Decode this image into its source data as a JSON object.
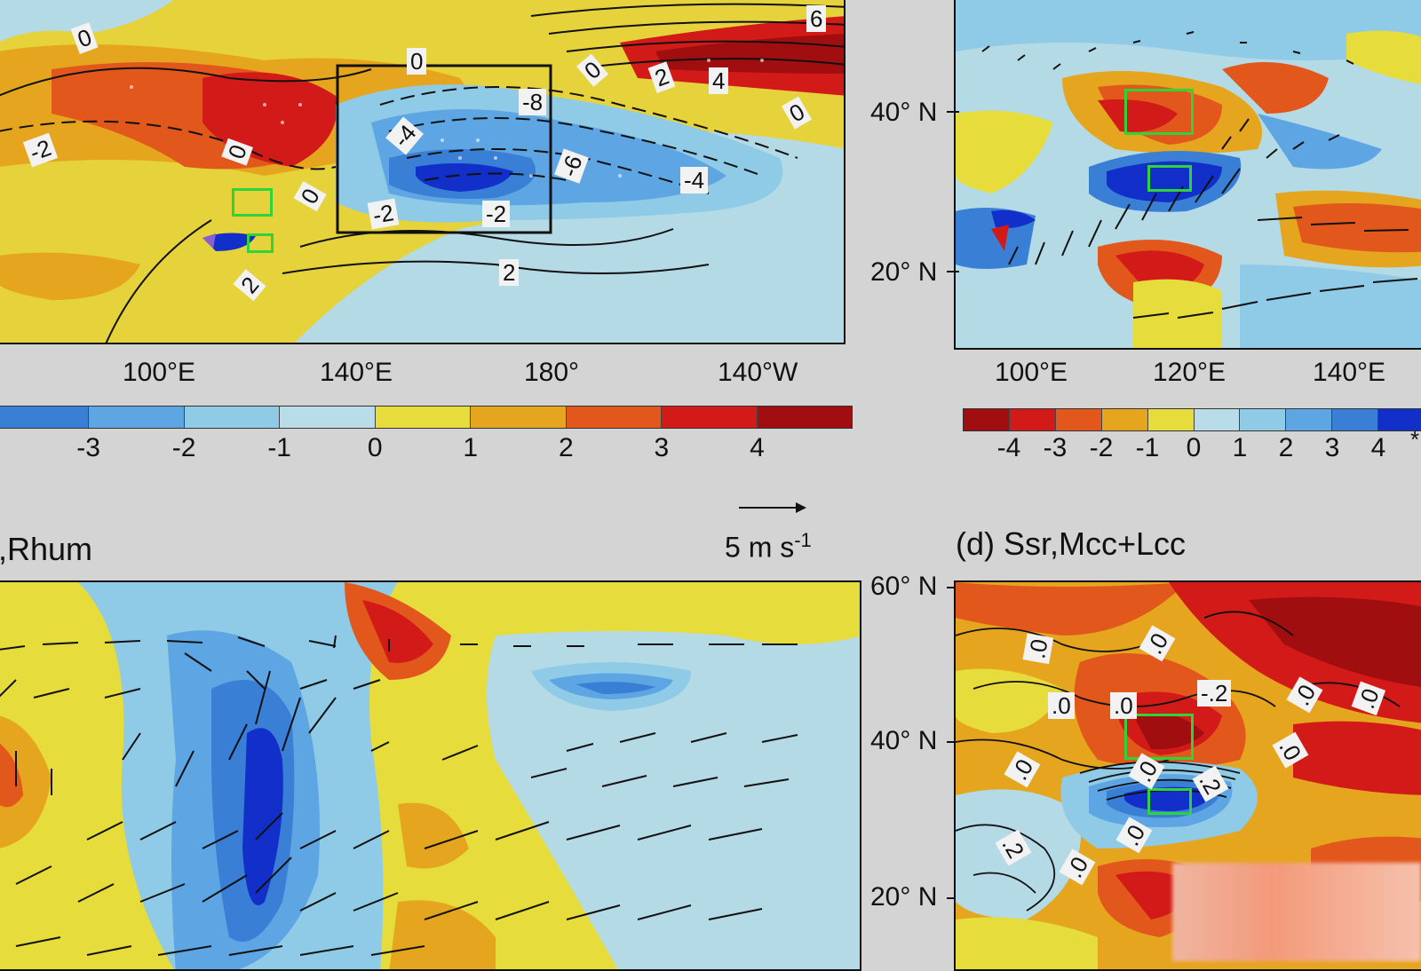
{
  "panel_a": {
    "lon_ticks": [
      "100°E",
      "140°E",
      "180°",
      "140°W"
    ],
    "contour_labels": [
      "0",
      "0",
      "-2",
      "0",
      "0",
      "-2",
      "-4",
      "-8",
      "-6",
      "-2",
      "0",
      "2",
      "4",
      "6",
      "-4",
      "2",
      "0",
      "2"
    ],
    "colorbar": {
      "labels": [
        "-3",
        "-2",
        "-1",
        "0",
        "1",
        "2",
        "3",
        "4"
      ],
      "colors": [
        "#3a7fd6",
        "#5ea6e3",
        "#8fcbe6",
        "#b9dde8",
        "#e6dc3c",
        "#e5a51e",
        "#e2571c",
        "#d21a18",
        "#a10e10"
      ]
    }
  },
  "panel_b": {
    "lat_ticks": [
      "40° N",
      "20° N"
    ],
    "lon_ticks": [
      "100°E",
      "120°E",
      "140°E"
    ],
    "colorbar": {
      "labels": [
        "-4",
        "-3",
        "-2",
        "-1",
        "0",
        "1",
        "2",
        "3",
        "4"
      ],
      "colors": [
        "#a10e10",
        "#d21a18",
        "#e2571c",
        "#e5a51e",
        "#e6dc3c",
        "#b9dde8",
        "#8fcbe6",
        "#5ea6e3",
        "#3a7fd6",
        "#1230c9"
      ],
      "extra": "*"
    }
  },
  "panel_c": {
    "title": ",Rhum",
    "vector_label": "5 m s",
    "vector_exp": "-1"
  },
  "panel_d": {
    "title": "(d) Ssr,Mcc+Lcc",
    "lat_ticks": [
      "60° N",
      "40° N",
      "20° N"
    ],
    "contour_labels": [
      ".0",
      ".0",
      ".0",
      ".0",
      ".0",
      "-.2",
      ".0",
      ".0",
      ".0",
      ".2",
      ".0",
      ".2",
      ".0",
      ".0"
    ]
  }
}
